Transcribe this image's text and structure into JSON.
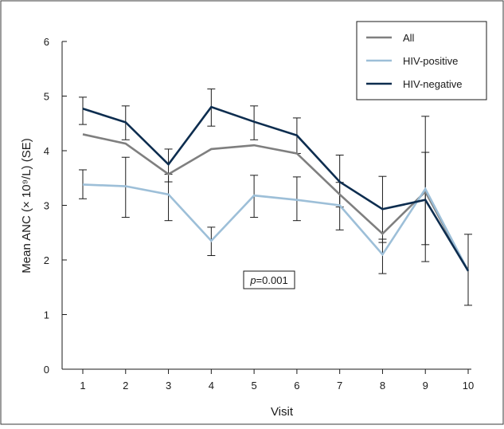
{
  "chart_data": {
    "type": "line",
    "xlabel": "Visit",
    "ylabel": "Mean ANC (× 10⁹/L) (SE)",
    "xlim": [
      1,
      10
    ],
    "ylim": [
      0,
      6
    ],
    "x": [
      1,
      2,
      3,
      4,
      5,
      6,
      7,
      8,
      9,
      10
    ],
    "x_ticks": [
      "1",
      "2",
      "3",
      "4",
      "5",
      "6",
      "7",
      "8",
      "9",
      "10"
    ],
    "y_ticks": [
      "0",
      "1",
      "2",
      "3",
      "4",
      "5",
      "6"
    ],
    "y_tick_values": [
      0,
      1,
      2,
      3,
      4,
      5,
      6
    ],
    "grid": false,
    "legend_position": "top-right",
    "annotation": {
      "p_symbol": "p",
      "p_value": "=0.001"
    },
    "series": [
      {
        "name": "All",
        "color": "#7f7f7f",
        "values": [
          4.3,
          4.13,
          3.57,
          4.03,
          4.1,
          3.95,
          3.2,
          2.48,
          3.25,
          1.8
        ],
        "error_low": [
          null,
          null,
          null,
          null,
          null,
          null,
          null,
          null,
          null,
          null
        ],
        "error_high": [
          null,
          null,
          null,
          null,
          null,
          null,
          null,
          null,
          null,
          null
        ]
      },
      {
        "name": "HIV-positive",
        "color": "#9dbfd8",
        "values": [
          3.38,
          3.35,
          3.2,
          2.35,
          3.18,
          3.1,
          3.0,
          2.1,
          3.3,
          1.8
        ],
        "error_low": [
          3.12,
          2.78,
          2.72,
          2.08,
          2.78,
          2.72,
          2.55,
          1.75,
          1.97,
          1.17
        ],
        "error_high": [
          3.65,
          3.88,
          3.57,
          2.6,
          3.55,
          3.52,
          3.42,
          2.38,
          3.97,
          2.47
        ]
      },
      {
        "name": "HIV-negative",
        "color": "#0d2d4f",
        "values": [
          4.77,
          4.52,
          3.75,
          4.8,
          4.53,
          4.28,
          3.43,
          2.93,
          3.1,
          1.8
        ],
        "error_low": [
          4.48,
          4.2,
          3.43,
          4.45,
          4.2,
          3.95,
          2.97,
          2.32,
          2.28,
          null
        ],
        "error_high": [
          4.98,
          4.82,
          4.03,
          5.13,
          4.82,
          4.6,
          3.92,
          3.53,
          4.63,
          null
        ]
      }
    ]
  }
}
